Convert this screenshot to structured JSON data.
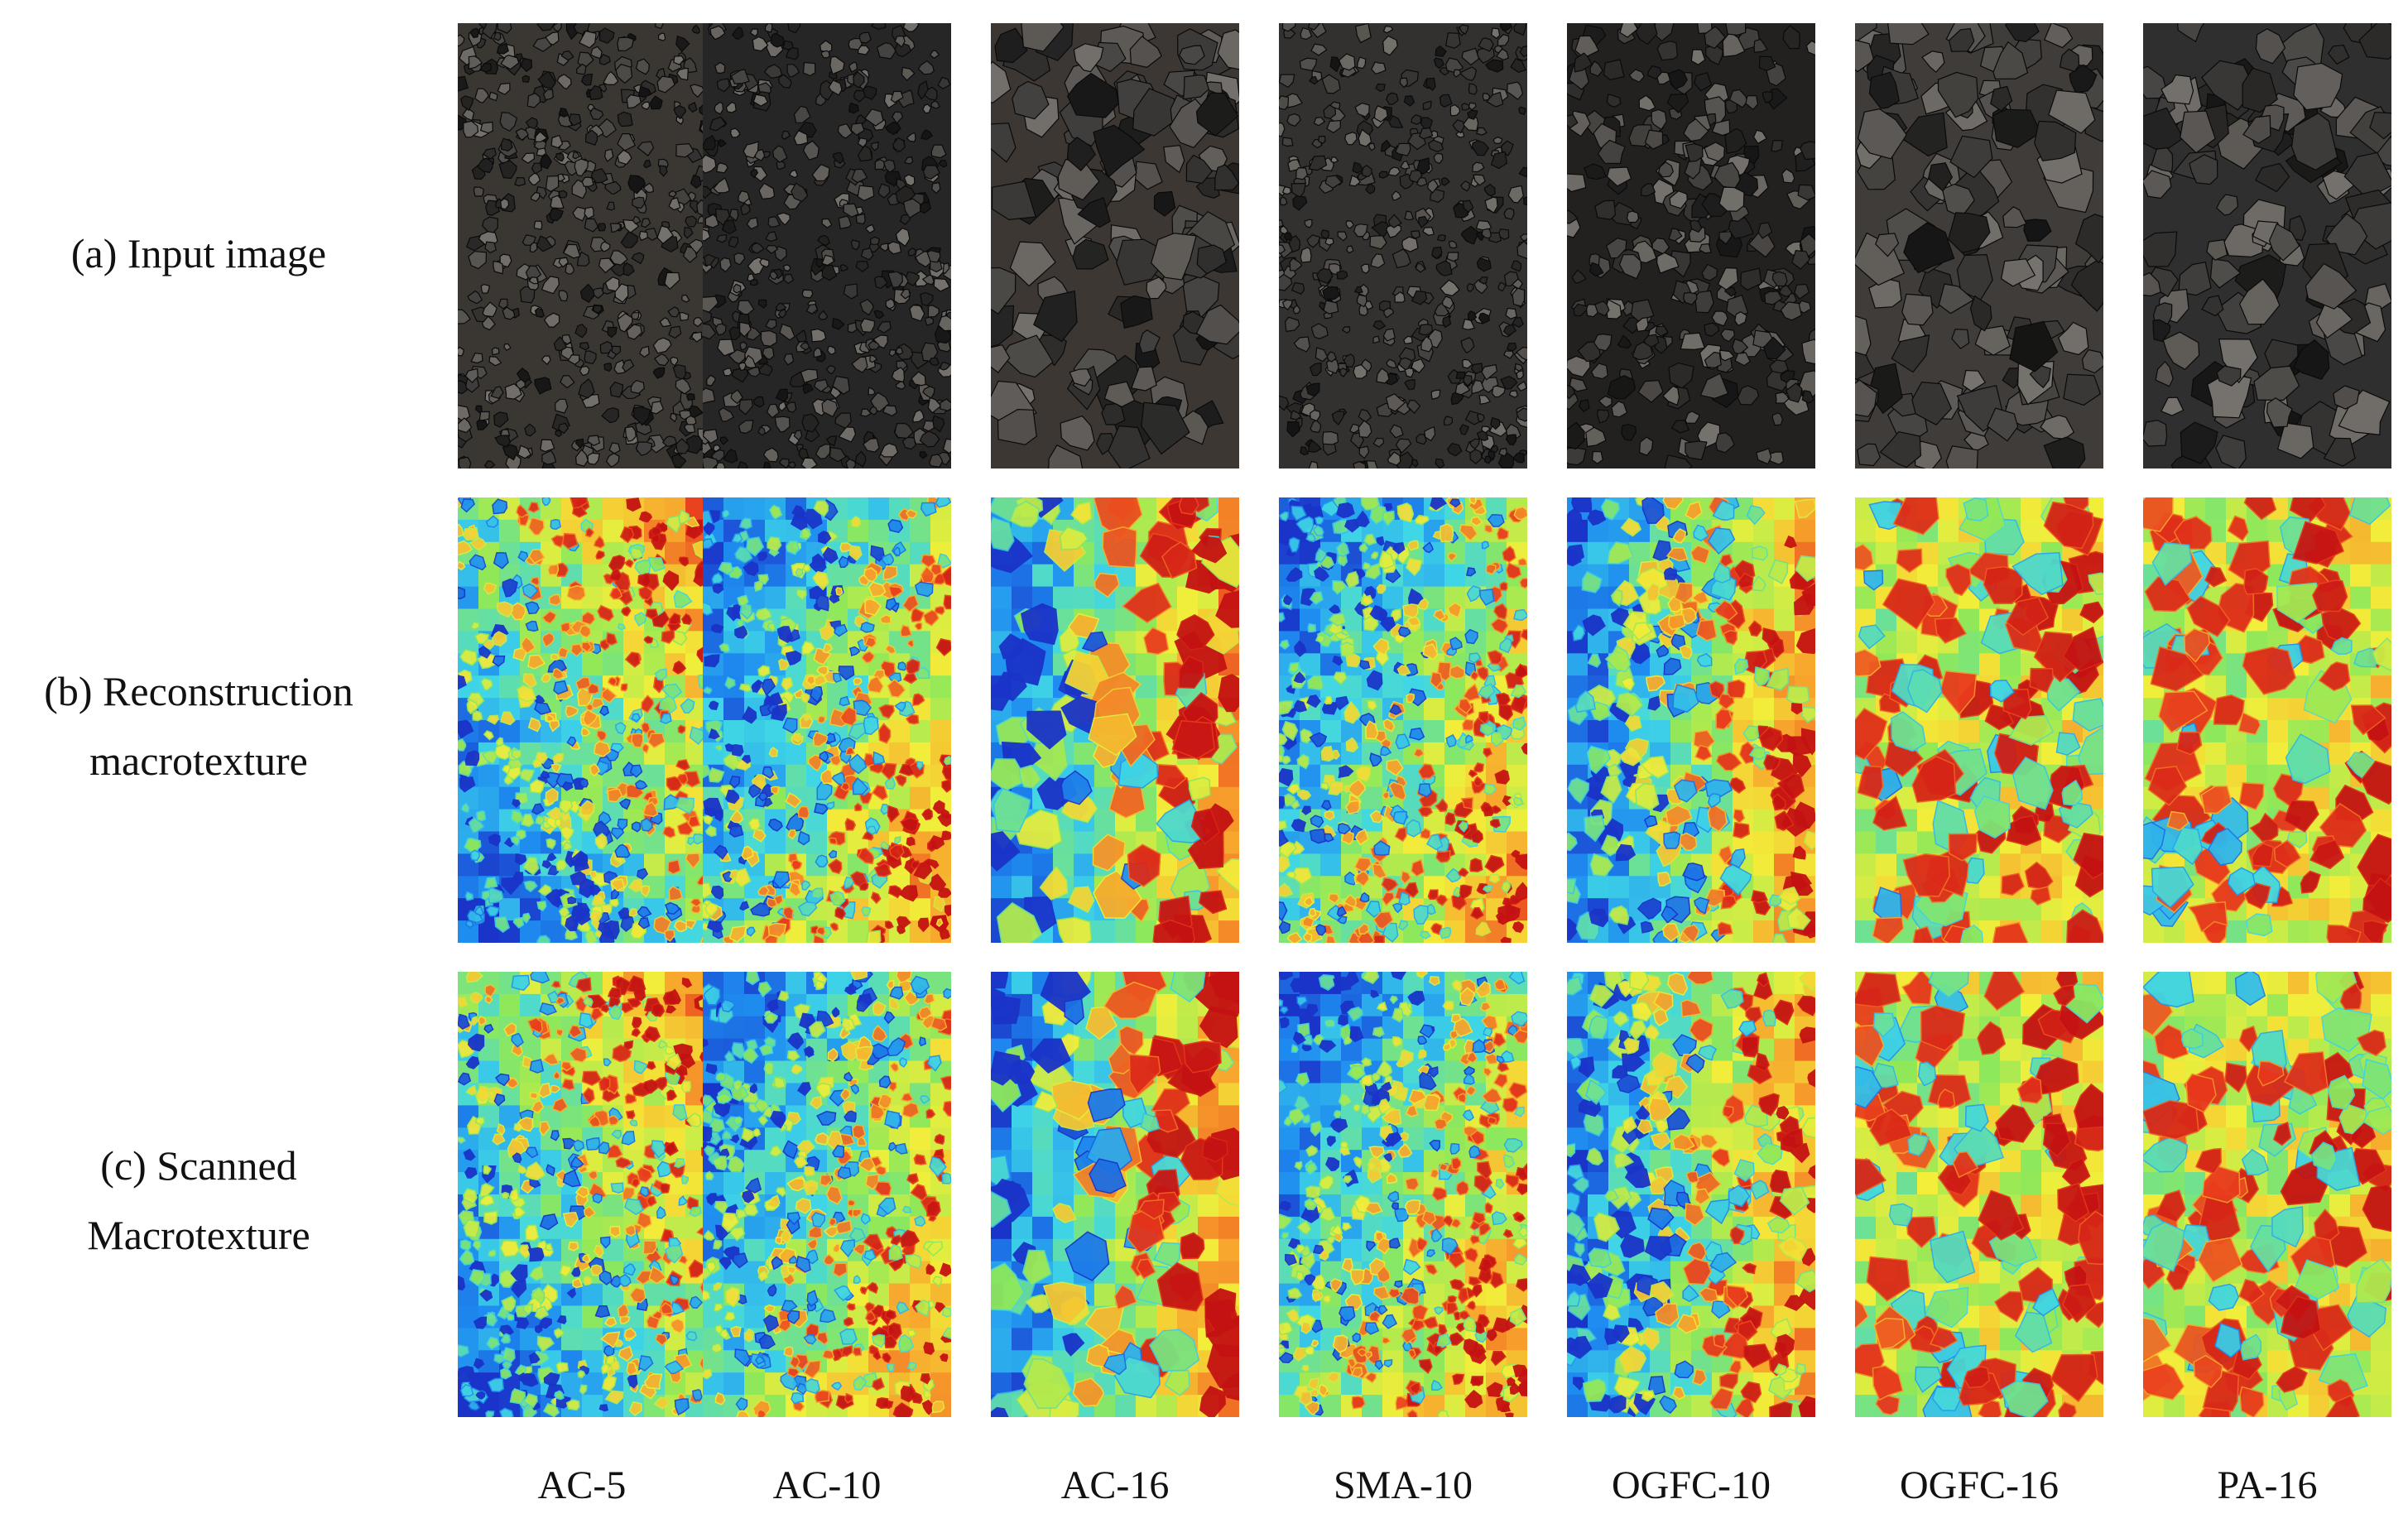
{
  "rows": [
    {
      "id": "input",
      "label": "(a) Input image",
      "kind": "photo"
    },
    {
      "id": "reconstruction",
      "label": "(b) Reconstruction\nmacrotexture",
      "kind": "heatmap"
    },
    {
      "id": "scanned",
      "label": "(c) Scanned\nMacrotexture",
      "kind": "heatmap"
    }
  ],
  "columns": [
    {
      "label": "AC-5",
      "photo_tone": "#3a3733",
      "grain": "fine",
      "gradient": "lower-left-blue-to-upper-right-red"
    },
    {
      "label": "AC-10",
      "photo_tone": "#262626",
      "grain": "fine",
      "gradient": "upper-left-blue-to-lower-right-red"
    },
    {
      "label": "AC-16",
      "photo_tone": "#3d3733",
      "grain": "coarse",
      "gradient": "left-blue-to-right-red"
    },
    {
      "label": "SMA-10",
      "photo_tone": "#33312f",
      "grain": "fine",
      "gradient": "upper-left-blue-to-lower-right-red"
    },
    {
      "label": "OGFC-10",
      "photo_tone": "#23211f",
      "grain": "medium",
      "gradient": "left-blue-to-right-red"
    },
    {
      "label": "OGFC-16",
      "photo_tone": "#3f3c39",
      "grain": "coarse",
      "gradient": "mostly-red-with-blue-voids"
    },
    {
      "label": "PA-16",
      "photo_tone": "#2f2f2f",
      "grain": "coarse",
      "gradient": "mostly-red-with-blue-voids"
    }
  ],
  "colors": {
    "heatmap_scale": [
      "#1a33c8",
      "#1e8cf0",
      "#3fd6e6",
      "#8ee85a",
      "#f2ee3a",
      "#f7a12c",
      "#e8381c",
      "#c41212"
    ],
    "aggregate_light": "#8f8a84",
    "aggregate_dark": "#141414"
  }
}
